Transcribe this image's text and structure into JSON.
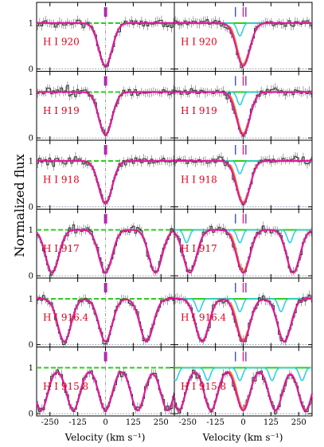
{
  "figure": {
    "ylabel": "Normalized flux",
    "xlabel_left": "Velocity  (km s⁻¹)",
    "xlabel_right": "Velocity  (km s⁻¹)"
  },
  "colors": {
    "data": "#333333",
    "error": "#8a8a8a",
    "model": "#e0199a",
    "continuum": "#2ecc1f",
    "component": "#2fd0e8",
    "partial_fit": "#f08a1a",
    "noise": "#4a62c8",
    "tick_purple": "#8a2bbd",
    "tick_magenta": "#e0199a",
    "tick_blue": "#3a4bd8",
    "label": "#e0001a",
    "zero_line": "#6a7a9a"
  },
  "chart_data": {
    "type": "line",
    "xlim": [
      -310,
      310
    ],
    "ylim": [
      -0.05,
      1.45
    ],
    "x_ticks": [
      -250,
      -125,
      0,
      125,
      250
    ],
    "y_ticks": [
      0,
      1
    ],
    "panel_labels": [
      "H I 920",
      "H I 919",
      "H I 918",
      "H I 917",
      "H I 916.4",
      "H I 915.8"
    ],
    "line_centers_kms": [
      [
        0
      ],
      [
        0
      ],
      [
        0
      ],
      [
        -240,
        0,
        225
      ],
      [
        -185,
        0,
        185
      ],
      [
        -290,
        -145,
        0,
        145,
        280
      ]
    ],
    "component_centers_kms": [
      -35,
      0,
      12
    ],
    "model_dip_depth": 0.93,
    "model_sigma_kms": 30
  }
}
